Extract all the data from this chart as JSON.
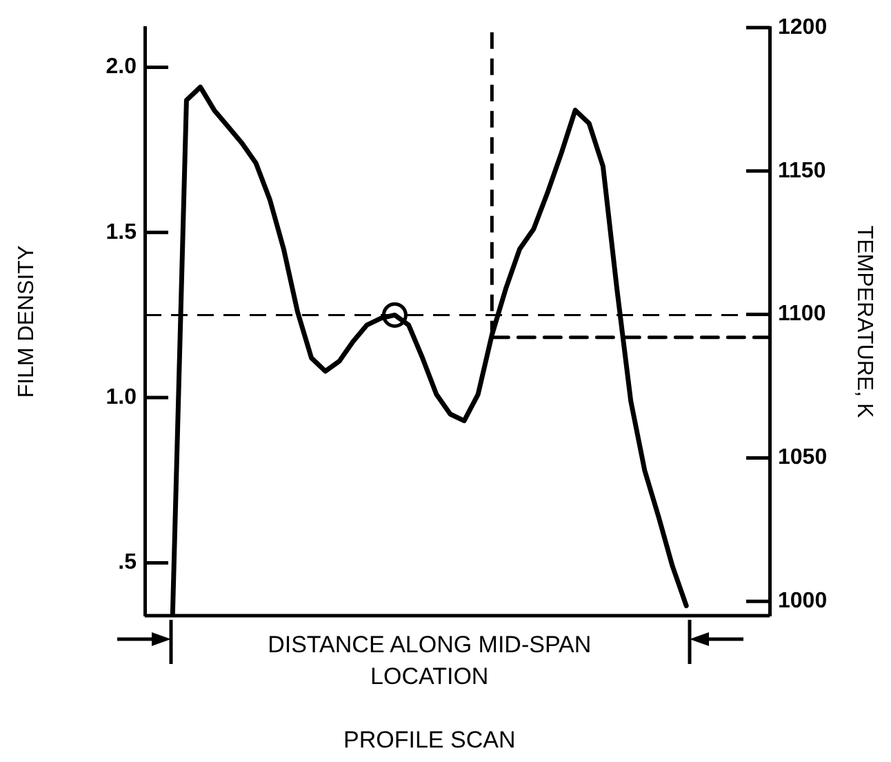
{
  "chart_data": {
    "type": "line",
    "xlabel": "PROFILE SCAN",
    "ylabel": "FILM DENSITY",
    "y2label": "TEMPERATURE, K",
    "annotations": [
      "DISTANCE ALONG MID-SPAN LOCATION"
    ],
    "categories": [
      null,
      null,
      null,
      null,
      null,
      null,
      null,
      null,
      null,
      null,
      null,
      null,
      null,
      null,
      null,
      null,
      null,
      null,
      null,
      null,
      null,
      null,
      null,
      null,
      null,
      null,
      null,
      null,
      null,
      null,
      null,
      null,
      null,
      null,
      null,
      null,
      null,
      null,
      null,
      null,
      null,
      null,
      null,
      null,
      null,
      null
    ],
    "ylim": [
      0.34,
      2.12
    ],
    "yticks": [
      {
        "value": 0.5,
        "label": ".5"
      },
      {
        "value": 1.0,
        "label": "1.0"
      },
      {
        "value": 1.5,
        "label": "1.5"
      },
      {
        "value": 2.0,
        "label": "2.0"
      }
    ],
    "y2lim": [
      995,
      1200
    ],
    "y2ticks": [
      1000,
      1050,
      1100,
      1150,
      1200
    ],
    "tick_labels": "y",
    "marker": "none",
    "line_style": "solid",
    "series": [
      {
        "color": "#000000",
        "values": [
          null,
          null,
          0.34,
          1.9,
          1.94,
          1.87,
          1.82,
          1.77,
          1.71,
          1.6,
          1.45,
          1.26,
          1.12,
          1.08,
          1.11,
          1.17,
          1.22,
          1.24,
          1.25,
          1.22,
          1.12,
          1.01,
          0.95,
          0.93,
          1.01,
          1.19,
          1.33,
          1.45,
          1.51,
          1.62,
          1.74,
          1.87,
          1.83,
          1.7,
          1.33,
          0.99,
          0.78,
          0.64,
          0.49,
          0.37,
          null,
          null,
          null,
          null,
          null,
          null
        ]
      },
      {
        "color": "#000000",
        "marker": "circle",
        "values": [
          null,
          null,
          null,
          null,
          null,
          null,
          null,
          null,
          null,
          null,
          null,
          null,
          null,
          null,
          null,
          null,
          null,
          null,
          1.25,
          null,
          null,
          null,
          null,
          null,
          null,
          null,
          null,
          null,
          null,
          null,
          null,
          null,
          null,
          null,
          null,
          null,
          null,
          null,
          null,
          null,
          null,
          null,
          null,
          null,
          null,
          null
        ]
      },
      {
        "color": "#000000",
        "axis": "y2",
        "line_style": "dashed",
        "values": [
          null,
          null,
          null,
          null,
          null,
          null,
          null,
          null,
          null,
          null,
          null,
          null,
          null,
          null,
          null,
          null,
          null,
          null,
          null,
          null,
          null,
          null,
          null,
          null,
          null,
          1092,
          1092,
          1092,
          1092,
          1092,
          1092,
          1092,
          1092,
          1092,
          1092,
          1092,
          1092,
          1092,
          1092,
          1092,
          1092,
          1092,
          1092,
          1092,
          1092,
          1092
        ]
      }
    ],
    "ref_lines": [
      {
        "axis": "y",
        "value": 1.25,
        "color": "#000000",
        "line_style": "dashed"
      }
    ]
  }
}
